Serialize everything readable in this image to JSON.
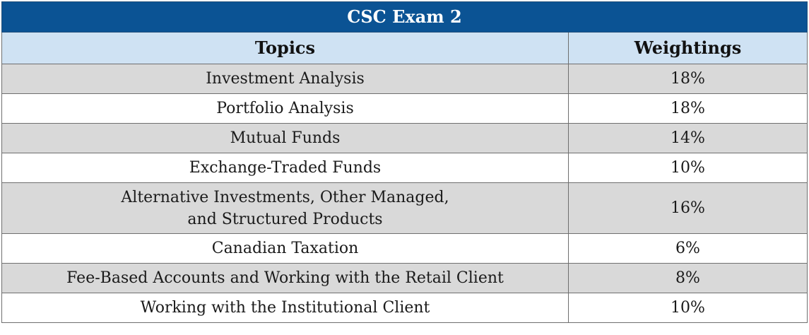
{
  "table": {
    "title": "CSC Exam 2",
    "headers": {
      "topics": "Topics",
      "weightings": "Weightings"
    },
    "rows": [
      {
        "topic": "Investment Analysis",
        "weighting": "18%"
      },
      {
        "topic": "Portfolio Analysis",
        "weighting": "18%"
      },
      {
        "topic": "Mutual Funds",
        "weighting": "14%"
      },
      {
        "topic": "Exchange-Traded Funds",
        "weighting": "10%"
      },
      {
        "topic_line1": "Alternative Investments, Other Managed,",
        "topic_line2": "and Structured Products",
        "weighting": "16%"
      },
      {
        "topic": "Canadian Taxation",
        "weighting": "6%"
      },
      {
        "topic": "Fee-Based Accounts and Working with the Retail Client",
        "weighting": "8%"
      },
      {
        "topic": "Working with the Institutional Client",
        "weighting": "10%"
      }
    ],
    "colors": {
      "title_bg": "#0b5394",
      "header_bg": "#cfe2f3",
      "shaded_row_bg": "#d9d9d9"
    }
  }
}
